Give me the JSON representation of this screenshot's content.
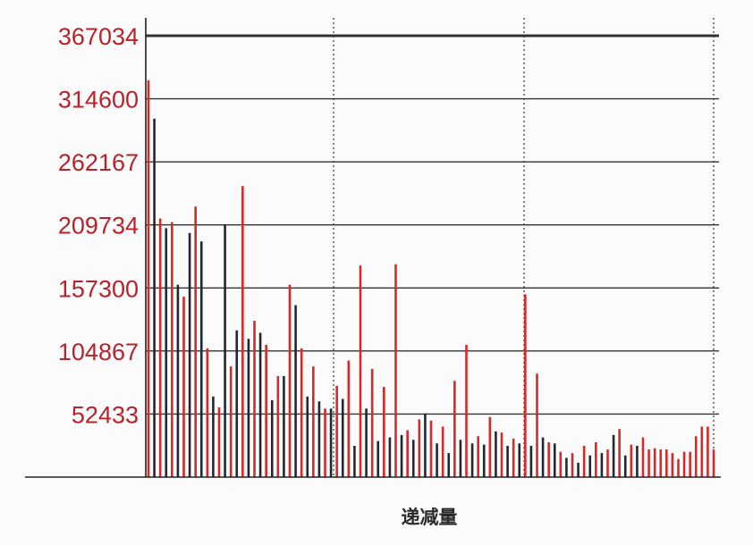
{
  "chart_data": {
    "type": "bar",
    "xlabel": "递减量",
    "ylabel": "",
    "ylim": [
      0,
      367034
    ],
    "yticks": [
      52433,
      104867,
      157300,
      209734,
      262167,
      314600,
      367034
    ],
    "ytick_labels": [
      "52433",
      "104867",
      "157300",
      "209734",
      "262167",
      "314600",
      "367034"
    ],
    "grid": "horizontal",
    "colors": {
      "red": "#d42a2a",
      "dark": "#1e2a30",
      "ticks": "#b8222a",
      "grid": "#333333"
    },
    "series": [
      {
        "color": "red",
        "values": [
          330000,
          215000,
          212000,
          150000,
          225000,
          107000,
          58000,
          92000,
          242000,
          130000,
          110000,
          84000,
          160000,
          107000,
          92000,
          57000,
          76000,
          97000,
          176000,
          90000,
          75000,
          177000,
          39000,
          48000,
          47000,
          42000,
          80000,
          110000,
          34000,
          50000,
          37000,
          32000,
          152000,
          86000,
          29000,
          21000,
          20000,
          26000,
          29000,
          23000,
          40000,
          27000,
          33000,
          23000,
          24000,
          23000,
          23000,
          20000,
          15000,
          21000,
          21000,
          34000,
          42000,
          42000,
          23000
        ]
      },
      {
        "color": "dark",
        "values": [
          298000,
          207000,
          160000,
          203000,
          196000,
          67000,
          210000,
          122000,
          115000,
          120000,
          64000,
          84000,
          143000,
          67000,
          63000,
          57000,
          65000,
          26000,
          57000,
          30000,
          33000,
          35000,
          31000,
          53000,
          28000,
          20000,
          31000,
          28000,
          27000,
          38000,
          26000,
          28000,
          26000,
          33000,
          28000,
          16000,
          12000,
          18000,
          20000,
          35000,
          18000,
          26000
        ]
      }
    ]
  }
}
